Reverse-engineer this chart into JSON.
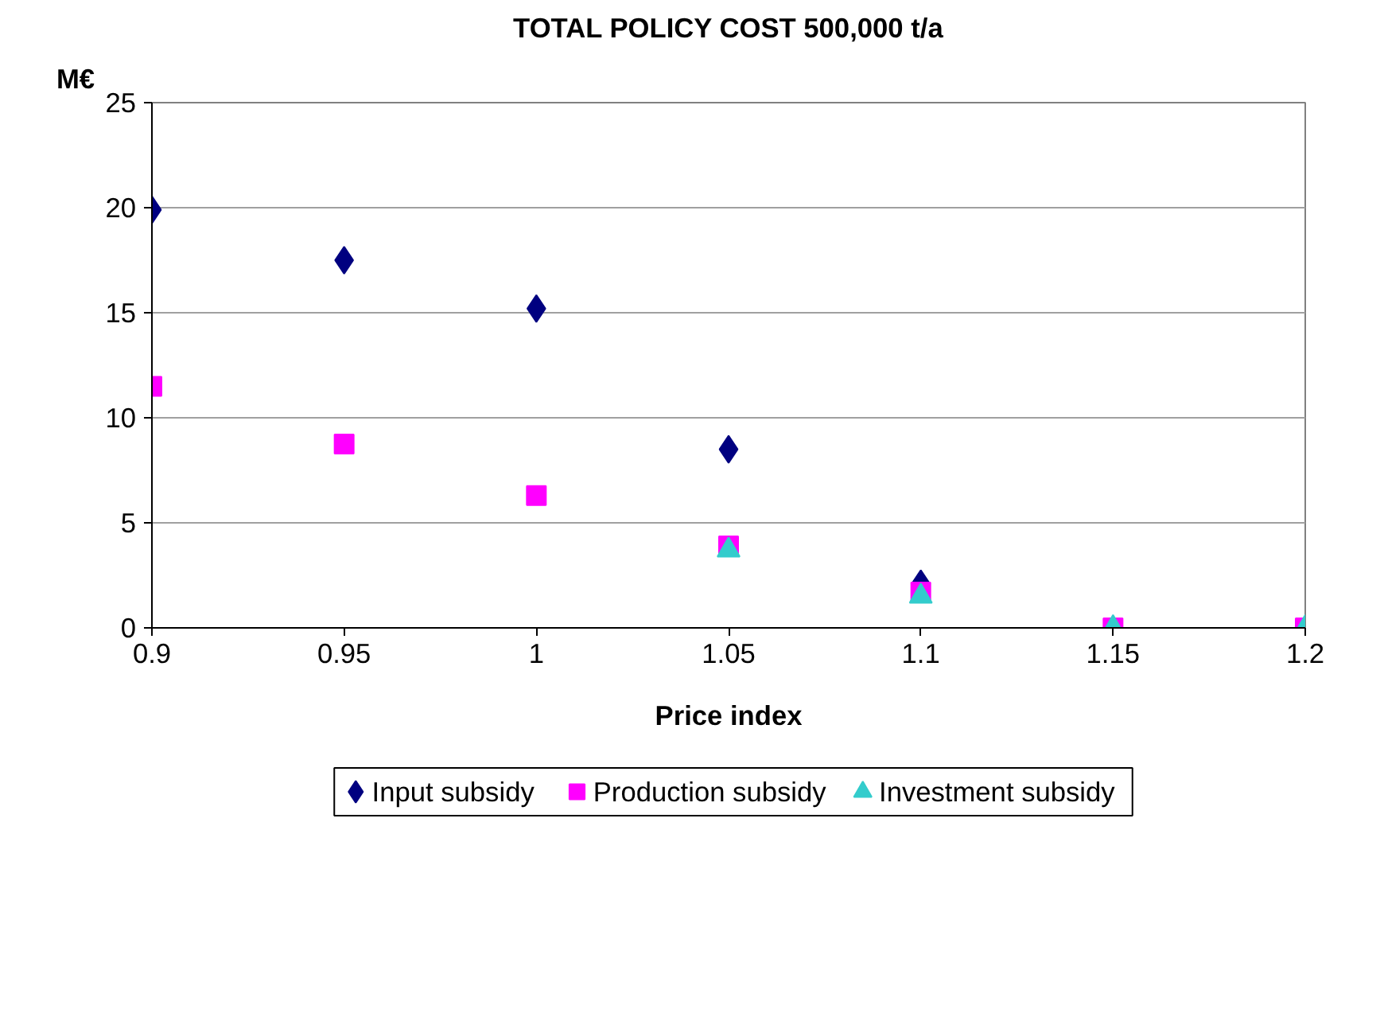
{
  "chart_data": {
    "type": "scatter",
    "title": "TOTAL POLICY COST 500,000 t/a",
    "ylabel": "M€",
    "xlabel": "Price index",
    "x": [
      0.9,
      0.95,
      1,
      1.05,
      1.1,
      1.15,
      1.2
    ],
    "series": [
      {
        "name": "Input subsidy",
        "color": "#000080",
        "marker": "diamond",
        "values": [
          19.9,
          17.5,
          15.2,
          8.5,
          2.1,
          null,
          null
        ]
      },
      {
        "name": "Production subsidy",
        "color": "#ff00ff",
        "marker": "square",
        "values": [
          11.5,
          8.75,
          6.3,
          3.9,
          1.7,
          0,
          0
        ]
      },
      {
        "name": "Investment subsidy",
        "color": "#33cccc",
        "marker": "triangle",
        "values": [
          null,
          null,
          null,
          3.7,
          1.5,
          0,
          0
        ]
      }
    ],
    "xlim": [
      0.9,
      1.2
    ],
    "xticks": [
      0.9,
      0.95,
      1,
      1.05,
      1.1,
      1.15,
      1.2
    ],
    "ylim": [
      0,
      25
    ],
    "yticks": [
      0,
      5,
      10,
      15,
      20,
      25
    ],
    "grid": "y",
    "legend": "bottom"
  }
}
